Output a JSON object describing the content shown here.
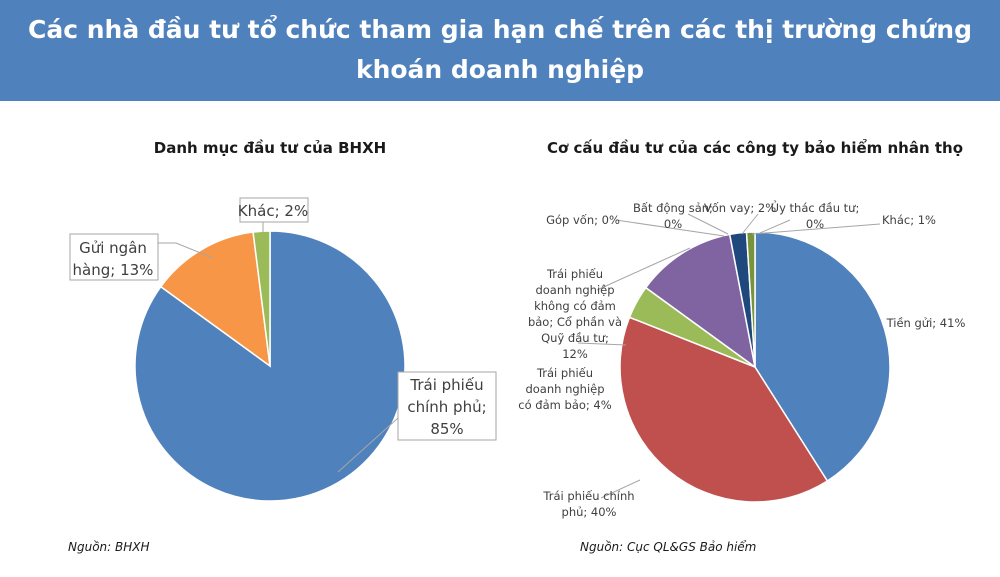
{
  "header": {
    "title": "Các nhà đầu tư tổ chức tham gia hạn chế trên các thị trường chứng khoán doanh nghiệp"
  },
  "charts_meta": {
    "left_source": "Nguồn: BHXH",
    "right_source": "Nguồn: Cục QL&GS Bảo hiểm"
  },
  "chart_data": [
    {
      "type": "pie",
      "title": "Danh mục đầu tư của BHXH",
      "slices": [
        {
          "label": "Trái phiếu chính phủ",
          "value": 85,
          "color": "#4f81bd"
        },
        {
          "label": "Gửi ngân hàng",
          "value": 13,
          "color": "#f79646"
        },
        {
          "label": "Khác",
          "value": 2,
          "color": "#9bbb59"
        }
      ],
      "data_labels": [
        {
          "lines": [
            "Trái phiếu",
            "chính phủ;",
            "85%"
          ]
        },
        {
          "lines": [
            "Gửi ngân",
            "hàng; 13%"
          ]
        },
        {
          "lines": [
            "Khác; 2%"
          ]
        }
      ]
    },
    {
      "type": "pie",
      "title": "Cơ cấu đầu tư của các công ty bảo hiểm nhân thọ",
      "slices": [
        {
          "label": "Tiền gửi",
          "value": 41,
          "color": "#4f81bd"
        },
        {
          "label": "Trái phiếu chính phủ",
          "value": 40,
          "color": "#c0504d"
        },
        {
          "label": "Trái phiếu doanh nghiệp có đảm bảo",
          "value": 4,
          "color": "#9bbb59"
        },
        {
          "label": "Trái phiếu doanh nghiệp không có đảm bảo; Cổ phần và Quỹ đầu tư",
          "value": 12,
          "color": "#8064a2"
        },
        {
          "label": "Góp vốn",
          "value": 0,
          "color": "#4bacc6"
        },
        {
          "label": "Bất động sản",
          "value": 0,
          "color": "#f79646"
        },
        {
          "label": "Vốn vay",
          "value": 2,
          "color": "#1f497d"
        },
        {
          "label": "Ủy thác đầu tư",
          "value": 0,
          "color": "#c0504d"
        },
        {
          "label": "Khác",
          "value": 1,
          "color": "#77933c"
        }
      ],
      "data_labels": [
        {
          "lines": [
            "Tiền gửi; 41%"
          ]
        },
        {
          "lines": [
            "Trái phiếu chính",
            "phủ; 40%"
          ]
        },
        {
          "lines": [
            "Trái phiếu",
            "doanh nghiệp",
            "có đảm bảo; 4%"
          ]
        },
        {
          "lines": [
            "Trái phiếu",
            "doanh nghiệp",
            "không có đảm",
            "bảo; Cổ phần và",
            "Quỹ đầu tư;",
            "12%"
          ]
        },
        {
          "lines": [
            "Góp vốn; 0%"
          ]
        },
        {
          "lines": [
            "Bất động sản;",
            "0%"
          ]
        },
        {
          "lines": [
            "Vốn vay; 2%"
          ]
        },
        {
          "lines": [
            "Ủy thác đầu tư;",
            "0%"
          ]
        },
        {
          "lines": [
            "Khác; 1%"
          ]
        }
      ]
    }
  ]
}
